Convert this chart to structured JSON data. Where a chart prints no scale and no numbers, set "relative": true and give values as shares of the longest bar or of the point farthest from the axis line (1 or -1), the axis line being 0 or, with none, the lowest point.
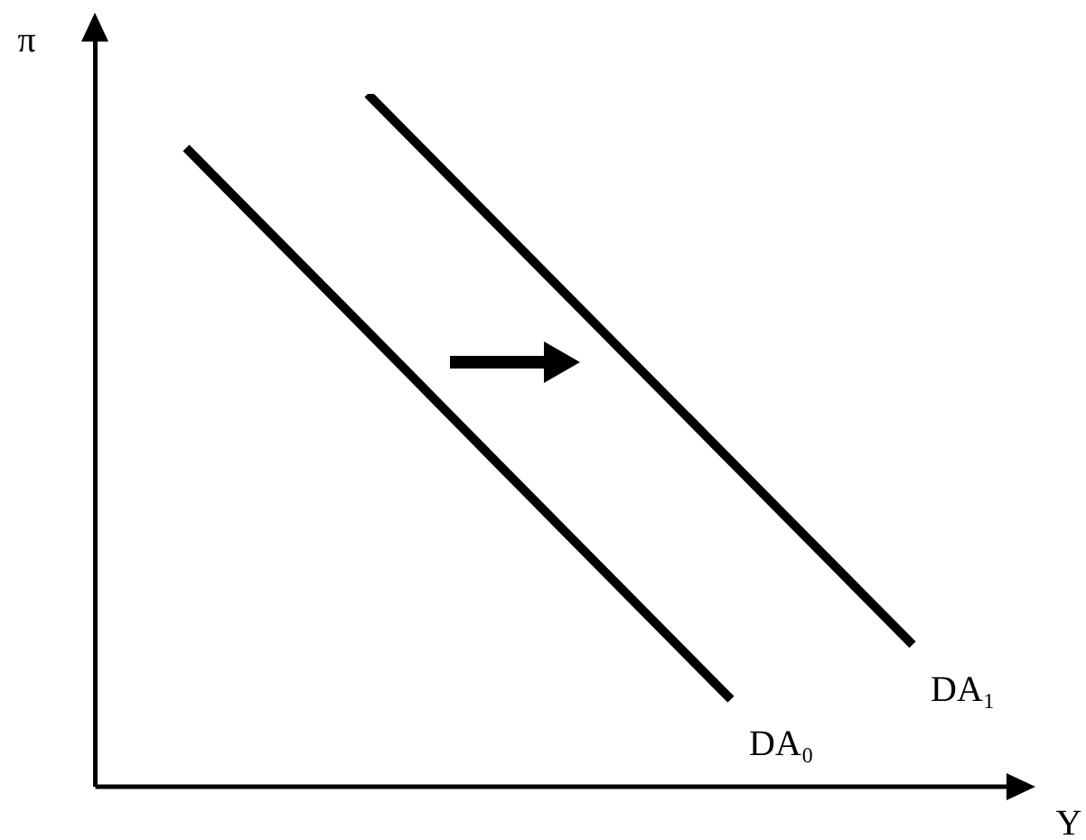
{
  "chart_data": {
    "type": "line",
    "relative": true,
    "xlabel": "Y",
    "ylabel": "π",
    "categories": [
      null,
      null,
      null,
      null,
      null
    ],
    "series": [
      {
        "name": "DA₀",
        "color": "#000000",
        "values": [
          0.922,
          0.657,
          0.391,
          0.126,
          null
        ]
      },
      {
        "name": "DA₁",
        "color": "#000000",
        "values": [
          null,
          1,
          0.735,
          0.47,
          0.205
        ]
      }
    ],
    "grid": false,
    "legend": false,
    "tick_labels": false,
    "marker": "none",
    "line_style": "solid"
  }
}
